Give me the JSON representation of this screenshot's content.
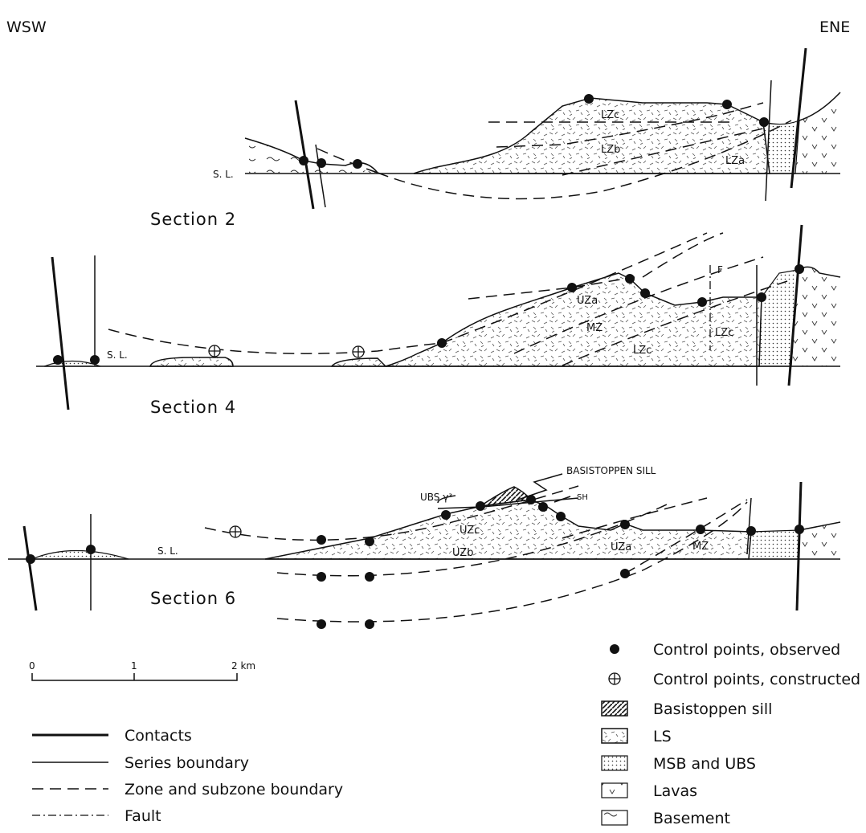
{
  "orientation": {
    "left": "WSW",
    "right": "ENE"
  },
  "sections": [
    {
      "title": "Section 2",
      "sea_level": "S. L.",
      "zones": [
        "LZc",
        "LZb",
        "LZa"
      ]
    },
    {
      "title": "Section 4",
      "sea_level": "S. L.",
      "zones": [
        "UZa",
        "MZ",
        "LZc",
        "LZc"
      ],
      "fault": "F"
    },
    {
      "title": "Section 6",
      "sea_level": "S. L.",
      "zones": [
        "UZc",
        "UZb",
        "UZa",
        "MZ"
      ],
      "annotations": [
        "BASISTOPPEN SILL",
        "SH",
        "UBS γ³"
      ]
    }
  ],
  "scale_bar": {
    "ticks": [
      "0",
      "1",
      "2 km"
    ]
  },
  "line_legend": [
    "Contacts",
    "Series boundary",
    "Zone and subzone boundary",
    "Fault"
  ],
  "symbol_legend": [
    "Control points, observed",
    "Control points, constructed",
    "Basistoppen sill",
    "LS",
    "MSB and UBS",
    "Lavas",
    "Basement"
  ]
}
